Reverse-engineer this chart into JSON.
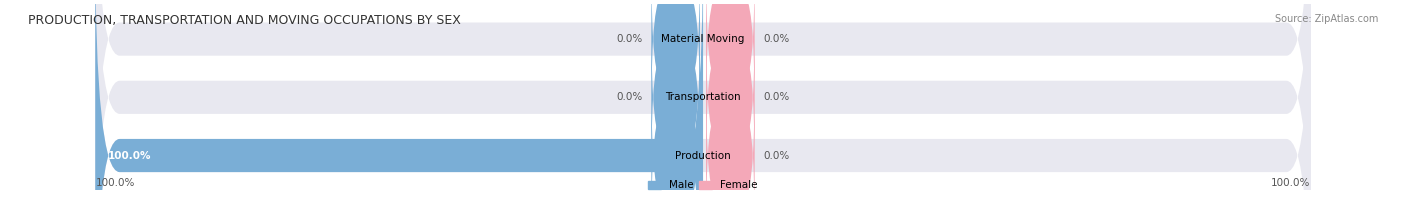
{
  "title": "PRODUCTION, TRANSPORTATION AND MOVING OCCUPATIONS BY SEX",
  "source": "Source: ZipAtlas.com",
  "categories": [
    "Production",
    "Transportation",
    "Material Moving"
  ],
  "male_values": [
    100.0,
    0.0,
    0.0
  ],
  "female_values": [
    0.0,
    0.0,
    0.0
  ],
  "male_color": "#7aaed6",
  "female_color": "#f4a8b8",
  "bar_bg_color": "#e8e8f0",
  "label_left_100": "100.0%",
  "label_right_100": "100.0%",
  "label_0": "0.0%",
  "bar_height": 0.55,
  "figsize": [
    14.06,
    1.97
  ],
  "dpi": 100,
  "title_fontsize": 9,
  "label_fontsize": 7.5,
  "source_fontsize": 7,
  "legend_fontsize": 7.5,
  "category_fontsize": 7.5,
  "axis_label_fontsize": 7.5
}
